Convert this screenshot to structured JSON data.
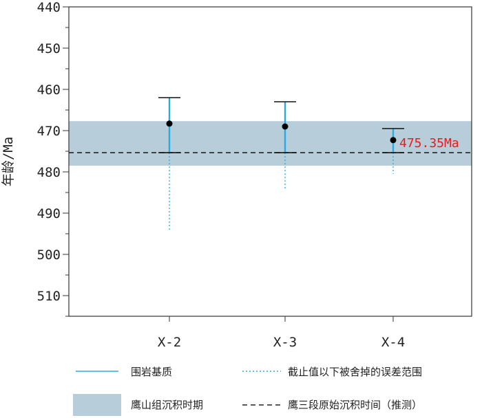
{
  "chart_data": {
    "type": "scatter",
    "ylabel": "年龄/Ma",
    "xlabel": "",
    "ylim": [
      440,
      515
    ],
    "y_inverted": true,
    "yticks": [
      440,
      450,
      460,
      470,
      480,
      490,
      500,
      510
    ],
    "categories": [
      "X-2",
      "X-3",
      "X-4"
    ],
    "points": [
      {
        "label": "X-2",
        "age": 468.3,
        "upper": 462.0,
        "cutoff": 475.35,
        "lower_extent": 494.0
      },
      {
        "label": "X-3",
        "age": 469.0,
        "upper": 463.0,
        "cutoff": 475.35,
        "lower_extent": 484.5
      },
      {
        "label": "X-4",
        "age": 472.3,
        "upper": 469.5,
        "cutoff": 475.35,
        "lower_extent": 480.5
      }
    ],
    "band": {
      "from": 467.7,
      "to": 478.5,
      "color": "#b7cdd9"
    },
    "reference_line": {
      "value": 475.35,
      "label": "475.35Ma",
      "color": "#e02020"
    },
    "colors": {
      "error_bar": "#29abe2",
      "point": "#000000"
    },
    "legend": [
      {
        "key": "solid",
        "label": "围岩基质"
      },
      {
        "key": "dotted",
        "label": "截止值以下被舍掉的误差范围"
      },
      {
        "key": "band",
        "label": "鹰山组沉积时期"
      },
      {
        "key": "dashed",
        "label": "鹰三段原始沉积时间（推测）"
      }
    ],
    "legend_placement": "bottom"
  }
}
